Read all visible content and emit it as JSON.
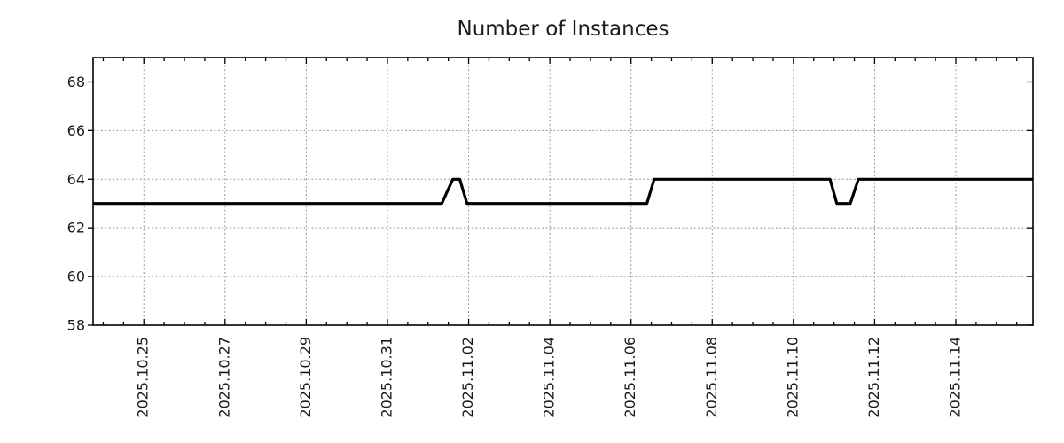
{
  "chart_data": {
    "type": "line",
    "title": "Number of Instances",
    "background_color": "#ffffff",
    "line_color": "#000000",
    "grid_color": "#949494",
    "grid": "dotted, at every major tick, both axes",
    "legend": "none",
    "x_axis": {
      "unit": "days since 2025-10-25 00:00",
      "range_days": [
        -1.25,
        21.9
      ],
      "label_rotation_deg": -90,
      "minor_tick_interval_days": 0.5,
      "major_ticks": [
        {
          "day": 0,
          "label": "2025.10.25"
        },
        {
          "day": 2,
          "label": "2025.10.27"
        },
        {
          "day": 4,
          "label": "2025.10.29"
        },
        {
          "day": 6,
          "label": "2025.10.31"
        },
        {
          "day": 8,
          "label": "2025.11.02"
        },
        {
          "day": 10,
          "label": "2025.11.04"
        },
        {
          "day": 12,
          "label": "2025.11.06"
        },
        {
          "day": 14,
          "label": "2025.11.08"
        },
        {
          "day": 16,
          "label": "2025.11.10"
        },
        {
          "day": 18,
          "label": "2025.11.12"
        },
        {
          "day": 20,
          "label": "2025.11.14"
        }
      ]
    },
    "y_axis": {
      "range": [
        58,
        69
      ],
      "major_ticks": [
        58,
        60,
        62,
        64,
        66,
        68
      ]
    },
    "series": [
      {
        "name": "Number of Instances",
        "color": "#000000",
        "line_width": 3.2,
        "points": [
          {
            "day": -1.25,
            "value": 63
          },
          {
            "day": 7.34,
            "value": 63
          },
          {
            "day": 7.61,
            "value": 64
          },
          {
            "day": 7.78,
            "value": 64
          },
          {
            "day": 7.96,
            "value": 63
          },
          {
            "day": 12.39,
            "value": 63
          },
          {
            "day": 12.57,
            "value": 64
          },
          {
            "day": 16.9,
            "value": 64
          },
          {
            "day": 17.07,
            "value": 63
          },
          {
            "day": 17.4,
            "value": 63
          },
          {
            "day": 17.6,
            "value": 64
          },
          {
            "day": 21.9,
            "value": 64
          }
        ]
      }
    ]
  }
}
